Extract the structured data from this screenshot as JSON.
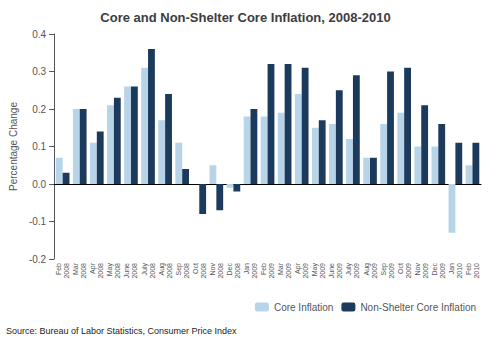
{
  "chart_data": {
    "type": "bar",
    "title": "Core and Non-Shelter Core Inflation, 2008-2010",
    "ylabel": "Percentage Change",
    "annotations": [
      "Source: Bureau of Labor Statistics, Consumer Price Index"
    ],
    "categories": [
      "Feb\n2008",
      "Mar\n2008",
      "Apr\n2008",
      "May\n2008",
      "June\n2008",
      "July\n2008",
      "Aug\n2008",
      "Sep\n2008",
      "Oct\n2008",
      "Nov\n2008",
      "Dec\n2008",
      "Jan\n2009",
      "Feb\n2009",
      "Mar\n2009",
      "Apr\n2009",
      "May\n2009",
      "June\n2009",
      "July\n2009",
      "Aug\n2009",
      "Sep\n2009",
      "Oct\n2009",
      "Nov\n2009",
      "Dec\n2009",
      "Jan\n2010",
      "Feb\n2010"
    ],
    "series": [
      {
        "name": "Core Inflation",
        "color": "#b8d4e8",
        "values": [
          0.07,
          0.2,
          0.11,
          0.21,
          0.26,
          0.31,
          0.17,
          0.11,
          0.0,
          0.05,
          -0.01,
          0.18,
          0.18,
          0.19,
          0.24,
          0.15,
          0.16,
          0.12,
          0.07,
          0.16,
          0.19,
          0.1,
          0.1,
          -0.13,
          0.05
        ]
      },
      {
        "name": "Non-Shelter Core Inflation",
        "color": "#1c3a5c",
        "values": [
          0.03,
          0.2,
          0.14,
          0.23,
          0.26,
          0.36,
          0.24,
          0.04,
          -0.08,
          -0.07,
          -0.02,
          0.2,
          0.32,
          0.32,
          0.31,
          0.17,
          0.25,
          0.29,
          0.07,
          0.3,
          0.31,
          0.21,
          0.16,
          0.11,
          0.11
        ]
      }
    ],
    "ylim": [
      -0.2,
      0.4
    ],
    "yticks": [
      -0.2,
      -0.1,
      {
        "value": 0,
        "label": "0.0"
      },
      0.1,
      0.2,
      0.3,
      0.4
    ],
    "grid": false,
    "legend": "lower right"
  }
}
